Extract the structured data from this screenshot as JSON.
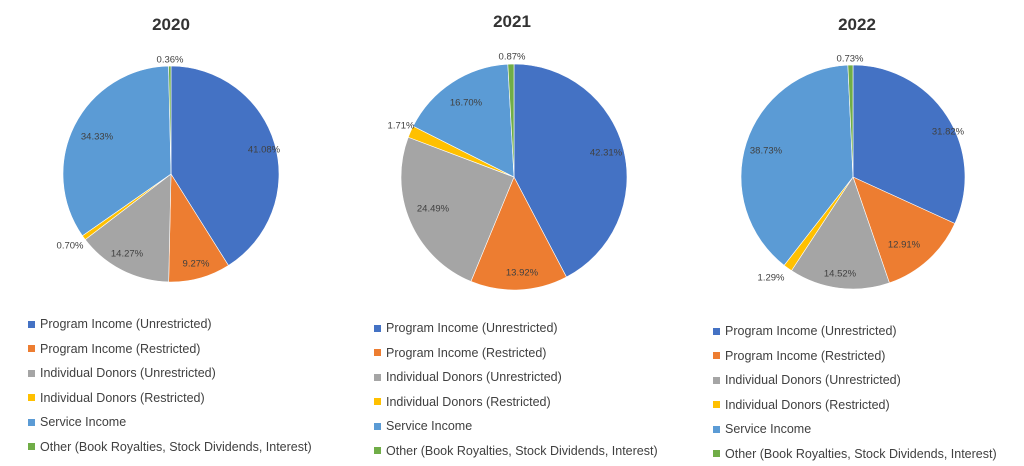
{
  "colors": {
    "program_unrestricted": "#4472C4",
    "program_restricted": "#ED7D31",
    "donors_unrestricted": "#A5A5A5",
    "donors_restricted": "#FFC000",
    "service_income": "#5B9BD5",
    "other": "#70AD47"
  },
  "legend_labels": [
    "Program Income (Unrestricted)",
    "Program Income (Restricted)",
    "Individual Donors (Unrestricted)",
    "Individual Donors (Restricted)",
    "Service Income",
    "Other (Book Royalties, Stock Dividends, Interest)"
  ],
  "chart_data": [
    {
      "type": "pie",
      "title": "2020",
      "categories": [
        "Program Income (Unrestricted)",
        "Program Income (Restricted)",
        "Individual Donors (Unrestricted)",
        "Individual Donors (Restricted)",
        "Service Income",
        "Other (Book Royalties, Stock Dividends, Interest)"
      ],
      "values": [
        41.08,
        9.27,
        14.27,
        0.7,
        34.33,
        0.36
      ],
      "labels": [
        "41.08%",
        "9.27%",
        "14.27%",
        "0.70%",
        "34.33%",
        "0.36%"
      ],
      "legend": "bottom"
    },
    {
      "type": "pie",
      "title": "2021",
      "categories": [
        "Program Income (Unrestricted)",
        "Program Income (Restricted)",
        "Individual Donors (Unrestricted)",
        "Individual Donors (Restricted)",
        "Service Income",
        "Other (Book Royalties, Stock Dividends, Interest)"
      ],
      "values": [
        42.31,
        13.92,
        24.49,
        1.71,
        16.7,
        0.87
      ],
      "labels": [
        "42.31%",
        "13.92%",
        "24.49%",
        "1.71%",
        "16.70%",
        "0.87%"
      ],
      "legend": "bottom"
    },
    {
      "type": "pie",
      "title": "2022",
      "categories": [
        "Program Income (Unrestricted)",
        "Program Income (Restricted)",
        "Individual Donors (Unrestricted)",
        "Individual Donors (Restricted)",
        "Service Income",
        "Other (Book Royalties, Stock Dividends, Interest)"
      ],
      "values": [
        31.82,
        12.91,
        14.52,
        1.29,
        38.73,
        0.73
      ],
      "labels": [
        "31.82%",
        "12.91%",
        "14.52%",
        "1.29%",
        "38.73%",
        "0.73%"
      ],
      "legend": "bottom"
    }
  ]
}
